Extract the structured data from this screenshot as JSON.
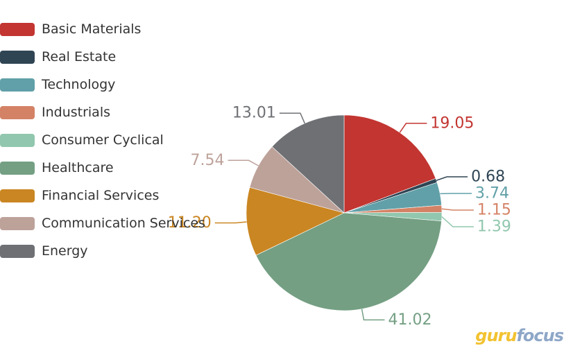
{
  "chart_data": {
    "type": "pie",
    "categories": [
      "Basic Materials",
      "Real Estate",
      "Technology",
      "Industrials",
      "Consumer Cyclical",
      "Healthcare",
      "Financial Services",
      "Communication Services",
      "Energy"
    ],
    "values": [
      19.05,
      0.68,
      3.74,
      1.15,
      1.39,
      41.02,
      11.2,
      7.54,
      13.01
    ],
    "value_labels": [
      "19.05",
      "0.68",
      "3.74",
      "1.15",
      "1.39",
      "41.02",
      "11.20",
      "7.54",
      "13.01"
    ],
    "colors": [
      "#c23531",
      "#2f4554",
      "#61a0a8",
      "#d48265",
      "#91c7ae",
      "#749f83",
      "#ca8622",
      "#bda29a",
      "#6e7074"
    ],
    "legend_position": "top-left"
  },
  "logo": {
    "part1": "guru",
    "part2": "focus"
  }
}
